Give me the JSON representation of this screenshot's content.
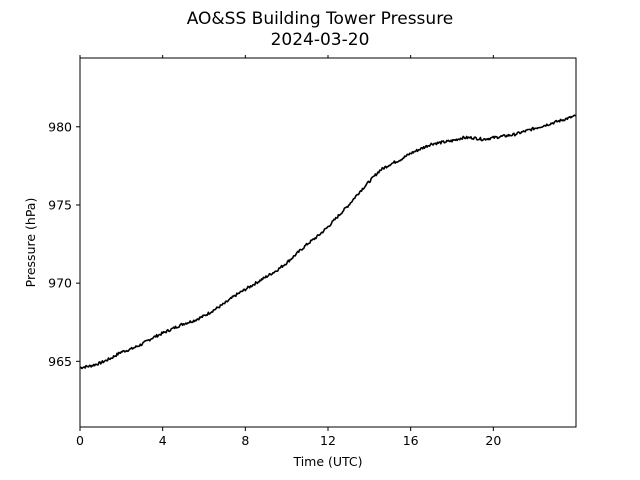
{
  "chart_data": {
    "type": "line",
    "title": "AO&SS Building Tower Pressure",
    "subtitle": "2024-03-20",
    "xlabel": "Time (UTC)",
    "ylabel": "Pressure (hPa)",
    "xlim": [
      0,
      24
    ],
    "ylim": [
      960.8,
      984.4
    ],
    "xticks": [
      0,
      4,
      8,
      12,
      16,
      20
    ],
    "xtick_labels": [
      "0",
      "4",
      "8",
      "12",
      "16",
      "20"
    ],
    "yticks": [
      965,
      970,
      975,
      980
    ],
    "ytick_labels": [
      "965",
      "970",
      "975",
      "980"
    ],
    "grid": false,
    "line_color": "#000000",
    "series": [
      {
        "x": [
          0,
          0.5,
          1,
          1.5,
          2,
          2.5,
          3,
          3.5,
          4,
          4.5,
          5,
          5.5,
          6,
          6.5,
          7,
          7.5,
          8,
          8.5,
          9,
          9.5,
          10,
          10.5,
          11,
          11.5,
          12,
          12.5,
          13,
          13.5,
          14,
          14.5,
          15,
          15.5,
          16,
          16.5,
          17,
          17.5,
          18,
          18.5,
          19,
          19.5,
          20,
          20.5,
          21,
          21.5,
          22,
          22.5,
          23,
          23.5,
          24
        ],
        "values": [
          964.6,
          964.7,
          964.9,
          965.2,
          965.6,
          965.8,
          966.1,
          966.5,
          966.8,
          967.1,
          967.4,
          967.6,
          967.9,
          968.3,
          968.7,
          969.2,
          969.6,
          970.0,
          970.4,
          970.8,
          971.3,
          971.9,
          972.5,
          973.0,
          973.6,
          974.3,
          975.0,
          975.8,
          976.5,
          977.2,
          977.6,
          977.9,
          978.3,
          978.6,
          978.9,
          979.0,
          979.1,
          979.3,
          979.3,
          979.2,
          979.3,
          979.4,
          979.5,
          979.7,
          979.9,
          980.1,
          980.3,
          980.5,
          980.7
        ]
      }
    ]
  }
}
